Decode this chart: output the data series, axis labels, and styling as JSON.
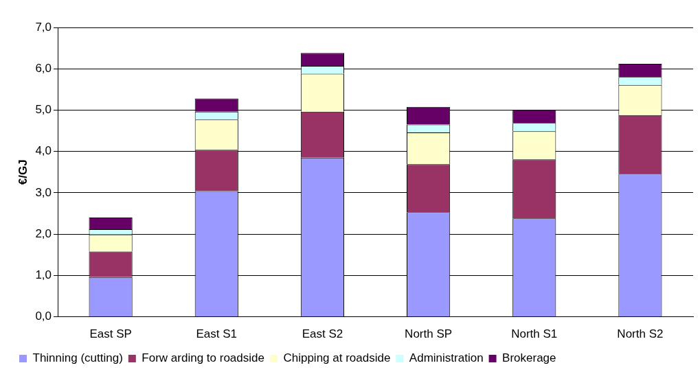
{
  "chart_data": {
    "type": "bar",
    "stacked": true,
    "ylabel": "€/GJ",
    "categories": [
      "East SP",
      "East S1",
      "East S2",
      "North SP",
      "North S1",
      "North S2"
    ],
    "series": [
      {
        "name": "Thinning (cutting)",
        "color": "#9999ff",
        "values": [
          0.96,
          3.04,
          3.85,
          2.53,
          2.38,
          3.46
        ]
      },
      {
        "name": "Forw arding to roadside",
        "color": "#993366",
        "values": [
          0.62,
          1.0,
          1.11,
          1.16,
          1.43,
          1.42
        ]
      },
      {
        "name": "Chipping at roadside",
        "color": "#ffffcc",
        "values": [
          0.41,
          0.73,
          0.92,
          0.77,
          0.68,
          0.73
        ]
      },
      {
        "name": "Administration",
        "color": "#ccffff",
        "values": [
          0.13,
          0.19,
          0.19,
          0.19,
          0.2,
          0.19
        ]
      },
      {
        "name": "Brokerage",
        "color": "#660066",
        "values": [
          0.28,
          0.32,
          0.31,
          0.43,
          0.32,
          0.32
        ]
      }
    ],
    "ylim": [
      0,
      7
    ],
    "yticks": [
      {
        "value": 0,
        "label": "0,0"
      },
      {
        "value": 1,
        "label": "1,0"
      },
      {
        "value": 2,
        "label": "2,0"
      },
      {
        "value": 3,
        "label": "3,0"
      },
      {
        "value": 4,
        "label": "4,0"
      },
      {
        "value": 5,
        "label": "5,0"
      },
      {
        "value": 6,
        "label": "6,0"
      },
      {
        "value": 7,
        "label": "7,0"
      }
    ],
    "grid": "y",
    "legend": "bottom"
  }
}
